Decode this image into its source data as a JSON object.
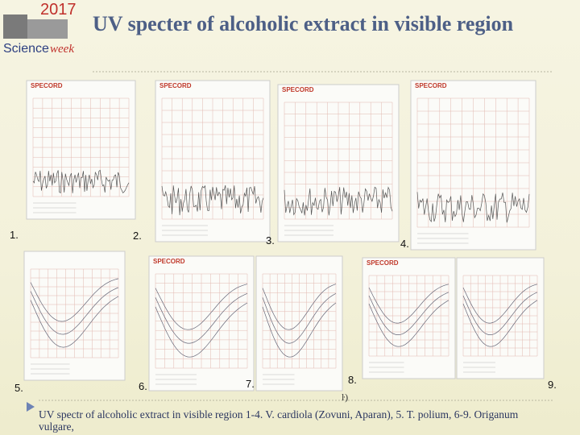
{
  "header": {
    "logo": {
      "year": "2017",
      "line1": "Science",
      "line2": "week"
    },
    "title": "UV specter of alcoholic extract in visible region"
  },
  "figure_labels": [
    "1.",
    "2.",
    "3.",
    "4.",
    "5.",
    "6.",
    "7.",
    "8.",
    "9."
  ],
  "scan_headers": [
    "SPECORD",
    "SPECORD",
    "SPECORD",
    "SPECORD",
    "SPECORD",
    "SPECORD"
  ],
  "stray_mark": "ŀ)",
  "caption": "UV spectr of alcoholic extract in visible region 1-4. V. cardiola (Zovuni, Aparan), 5. T. polium, 6-9. Origanum vulgare,"
}
